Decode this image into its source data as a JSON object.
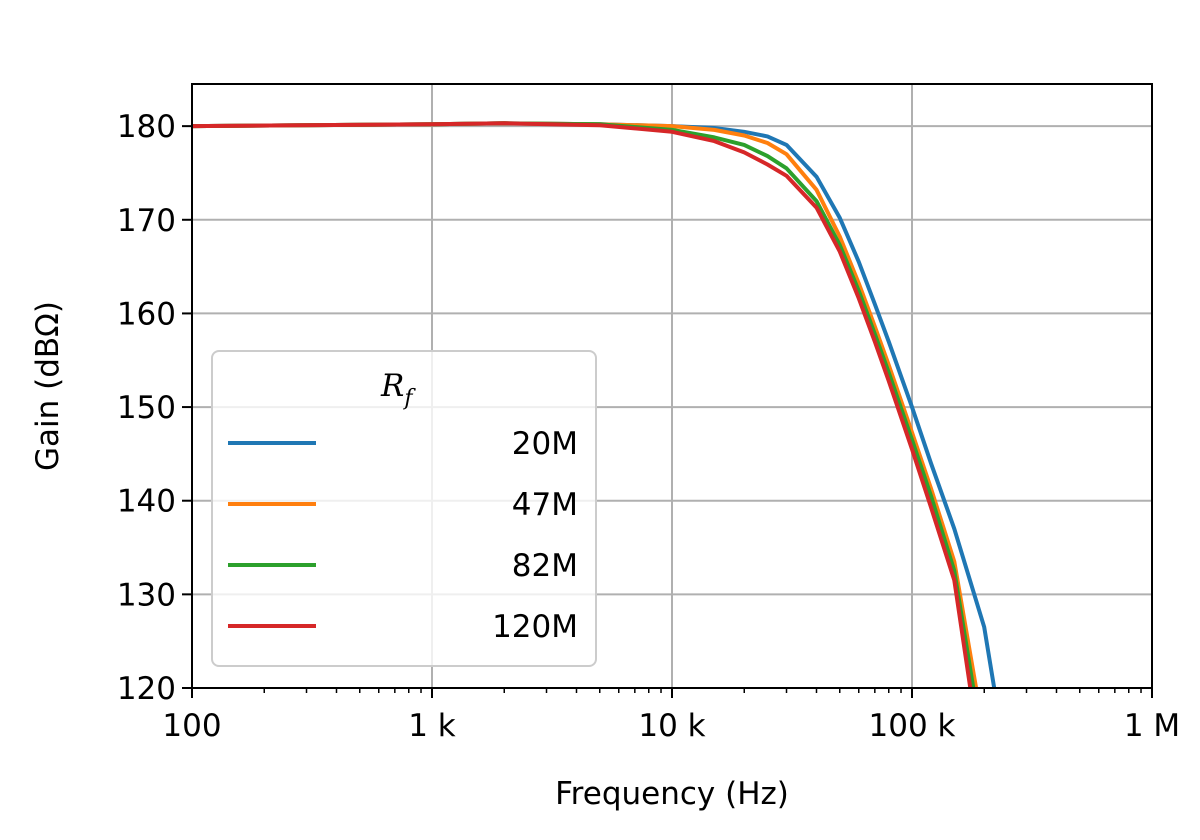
{
  "chart_data": {
    "type": "line",
    "title": "",
    "xlabel": "Frequency (Hz)",
    "ylabel": "Gain (dBΩ)",
    "xscale": "log",
    "xlim": [
      100,
      1000000
    ],
    "ylim": [
      120,
      184.5
    ],
    "grid": true,
    "legend_placement": "lower-left",
    "legend_title": "R_f",
    "legend_title_main": "R",
    "legend_title_sub": "f",
    "x_ticks": [
      100,
      1000,
      10000,
      100000,
      1000000
    ],
    "x_tick_labels": [
      "100",
      "1 k",
      "10 k",
      "100 k",
      "1 M"
    ],
    "y_ticks": [
      120,
      130,
      140,
      150,
      160,
      170,
      180
    ],
    "y_tick_labels": [
      "120",
      "130",
      "140",
      "150",
      "160",
      "170",
      "180"
    ],
    "series": [
      {
        "name": "20M",
        "color": "#1f77b4",
        "x": [
          100,
          1000,
          2000,
          5000,
          10000,
          15000,
          20000,
          25000,
          30000,
          40000,
          50000,
          60000,
          70000,
          80000,
          100000,
          120000,
          150000,
          200000,
          220000
        ],
        "y": [
          180,
          180.2,
          180.3,
          180.2,
          180.0,
          179.8,
          179.4,
          178.9,
          178.0,
          174.6,
          170.2,
          165.5,
          161.0,
          157.0,
          150.0,
          144.0,
          137.0,
          126.5,
          120
        ]
      },
      {
        "name": "47M",
        "color": "#ff7f0e",
        "x": [
          100,
          1000,
          2000,
          5000,
          10000,
          15000,
          20000,
          25000,
          30000,
          40000,
          50000,
          60000,
          70000,
          80000,
          100000,
          120000,
          150000,
          185000
        ],
        "y": [
          180,
          180.2,
          180.3,
          180.2,
          180.0,
          179.6,
          179.0,
          178.2,
          177.0,
          173.2,
          168.2,
          163.2,
          158.6,
          154.5,
          147.3,
          141.3,
          133.5,
          120
        ]
      },
      {
        "name": "82M",
        "color": "#2ca02c",
        "x": [
          100,
          1000,
          2000,
          5000,
          10000,
          15000,
          20000,
          25000,
          30000,
          40000,
          50000,
          60000,
          70000,
          80000,
          100000,
          120000,
          150000,
          180000
        ],
        "y": [
          180,
          180.2,
          180.3,
          180.2,
          179.6,
          178.8,
          178.0,
          176.8,
          175.5,
          172.0,
          167.3,
          162.4,
          157.8,
          153.7,
          146.5,
          140.5,
          132.5,
          120
        ]
      },
      {
        "name": "120M",
        "color": "#d62728",
        "x": [
          100,
          1000,
          2000,
          5000,
          10000,
          15000,
          20000,
          25000,
          30000,
          40000,
          50000,
          60000,
          70000,
          80000,
          100000,
          120000,
          150000,
          175000
        ],
        "y": [
          180,
          180.2,
          180.3,
          180.1,
          179.4,
          178.4,
          177.2,
          175.9,
          174.7,
          171.3,
          166.6,
          161.6,
          157.0,
          152.8,
          145.5,
          139.3,
          131.5,
          120
        ]
      }
    ]
  }
}
